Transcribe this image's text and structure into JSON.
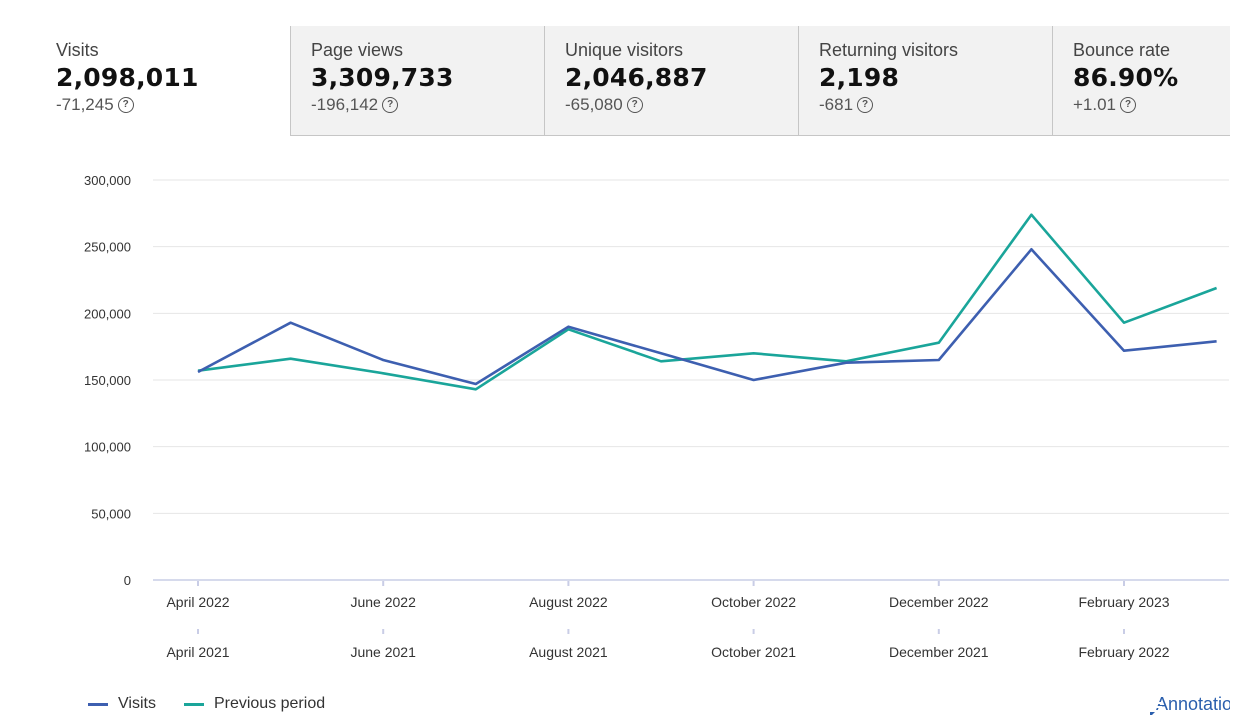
{
  "tabs": [
    {
      "label": "Visits",
      "value": "2,098,011",
      "delta": "-71,245",
      "active": true
    },
    {
      "label": "Page views",
      "value": "3,309,733",
      "delta": "-196,142",
      "active": false
    },
    {
      "label": "Unique visitors",
      "value": "2,046,887",
      "delta": "-65,080",
      "active": false
    },
    {
      "label": "Returning visitors",
      "value": "2,198",
      "delta": "-681",
      "active": false
    },
    {
      "label": "Bounce rate",
      "value": "86.90%",
      "delta": "+1.01",
      "active": false
    }
  ],
  "help_glyph": "?",
  "chart_data": {
    "type": "line",
    "x_primary": [
      "April 2022",
      "June 2022",
      "August 2022",
      "October 2022",
      "December 2022",
      "February 2023"
    ],
    "x_secondary": [
      "April 2021",
      "June 2021",
      "August 2021",
      "October 2021",
      "December 2021",
      "February 2022"
    ],
    "y_ticks": [
      "0",
      "50,000",
      "100,000",
      "150,000",
      "200,000",
      "250,000",
      "300,000"
    ],
    "ylim": [
      0,
      300000
    ],
    "series": [
      {
        "name": "Visits",
        "color": "#3d5fb0",
        "values": [
          156000,
          193000,
          165000,
          147000,
          190000,
          170000,
          150000,
          163000,
          165000,
          248000,
          172000,
          179000
        ]
      },
      {
        "name": "Previous period",
        "color": "#1aa59a",
        "values": [
          157000,
          166000,
          155000,
          143000,
          188000,
          164000,
          170000,
          164000,
          178000,
          274000,
          193000,
          219000
        ]
      }
    ]
  },
  "legend": [
    {
      "label": "Visits",
      "color": "#3d5fb0"
    },
    {
      "label": "Previous period",
      "color": "#1aa59a"
    }
  ],
  "annotations_label": "Annotations"
}
